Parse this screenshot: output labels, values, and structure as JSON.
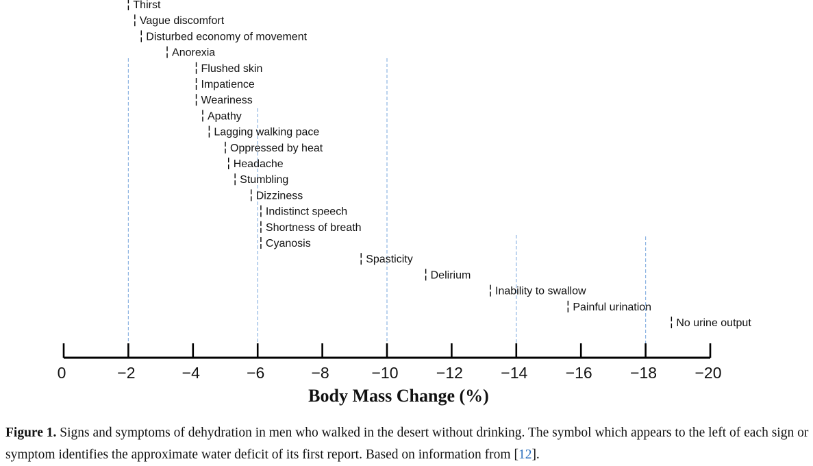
{
  "chart_data": {
    "type": "scatter",
    "xlabel": "Body Mass Change (%)",
    "xlim": [
      0,
      -20
    ],
    "ticks": [
      0,
      -2,
      -4,
      -6,
      -8,
      -10,
      -12,
      -14,
      -16,
      -18,
      -20
    ],
    "tick_labels": [
      "0",
      "−2",
      "−4",
      "−6",
      "−8",
      "−10",
      "−12",
      "−14",
      "−16",
      "−18",
      "−20"
    ],
    "reference_lines": [
      -2,
      -6,
      -10,
      -14,
      -18
    ],
    "points": [
      {
        "label": "Thirst",
        "x": -2.0
      },
      {
        "label": "Vague discomfort",
        "x": -2.2
      },
      {
        "label": "Disturbed economy of movement",
        "x": -2.4
      },
      {
        "label": "Anorexia",
        "x": -3.2
      },
      {
        "label": "Flushed skin",
        "x": -4.1
      },
      {
        "label": "Impatience",
        "x": -4.1
      },
      {
        "label": "Weariness",
        "x": -4.1
      },
      {
        "label": "Apathy",
        "x": -4.3
      },
      {
        "label": "Lagging walking pace",
        "x": -4.5
      },
      {
        "label": "Oppressed by heat",
        "x": -5.0
      },
      {
        "label": "Headache",
        "x": -5.1
      },
      {
        "label": "Stumbling",
        "x": -5.3
      },
      {
        "label": "Dizziness",
        "x": -5.8
      },
      {
        "label": "Indistinct speech",
        "x": -6.1
      },
      {
        "label": "Shortness of breath",
        "x": -6.1
      },
      {
        "label": "Cyanosis",
        "x": -6.1
      },
      {
        "label": "Spasticity",
        "x": -9.2
      },
      {
        "label": "Delirium",
        "x": -11.2
      },
      {
        "label": "Inability to swallow",
        "x": -13.2
      },
      {
        "label": "Painful urination",
        "x": -15.6
      },
      {
        "label": "No urine output",
        "x": -18.8
      }
    ]
  },
  "caption": {
    "figure_number": "Figure 1.",
    "text": " Signs and symptoms of dehydration in men who walked in the desert without drinking. The symbol which appears to the left of each sign or symptom identifies the approximate water deficit of its first report. Based on information from [",
    "reference": "12",
    "end": "]."
  },
  "colors": {
    "reference_line": "#8db4e2",
    "axis": "#000000",
    "text": "#111111",
    "link": "#2a6ebd"
  }
}
